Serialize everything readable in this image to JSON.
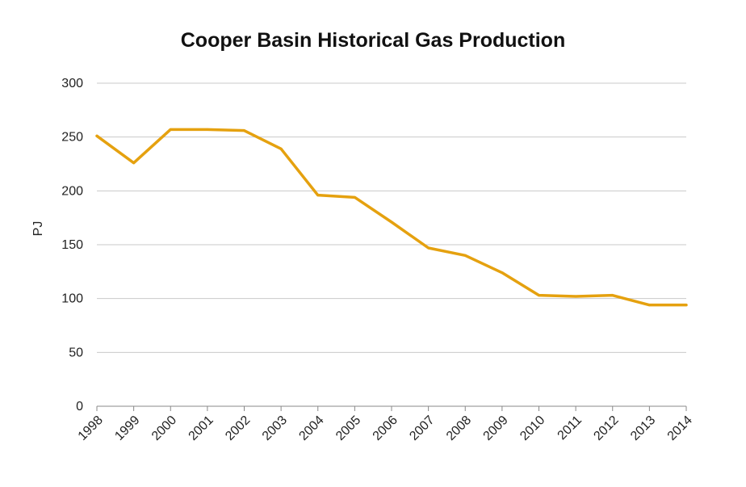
{
  "chart_data": {
    "type": "line",
    "title": "Cooper Basin Historical Gas Production",
    "xlabel": "",
    "ylabel": "PJ",
    "categories": [
      "1998",
      "1999",
      "2000",
      "2001",
      "2002",
      "2003",
      "2004",
      "2005",
      "2006",
      "2007",
      "2008",
      "2009",
      "2010",
      "2011",
      "2012",
      "2013",
      "2014"
    ],
    "yticks": [
      "0",
      "50",
      "100",
      "150",
      "200",
      "250",
      "300"
    ],
    "ylim": [
      0,
      300
    ],
    "grid": true,
    "legend": "none",
    "series": [
      {
        "color": "#e5a10f",
        "values": [
          251,
          226,
          257,
          257,
          256,
          239,
          196,
          194,
          171,
          147,
          140,
          124,
          103,
          102,
          103,
          94,
          94
        ]
      }
    ]
  }
}
